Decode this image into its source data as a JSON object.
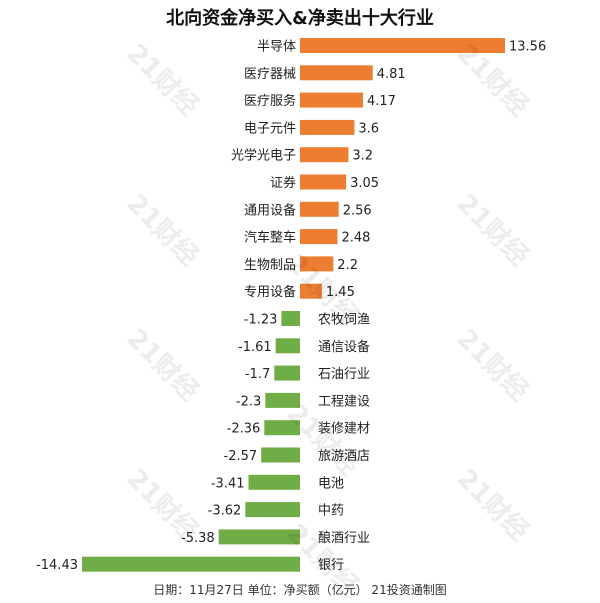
{
  "chart_data": {
    "type": "bar",
    "orientation": "horizontal",
    "title": "北向资金净买入&净卖出十大行业",
    "categories": [
      "半导体",
      "医疗器械",
      "医疗服务",
      "电子元件",
      "光学光电子",
      "证券",
      "通用设备",
      "汽车整车",
      "生物制品",
      "专用设备",
      "农牧饲渔",
      "通信设备",
      "石油行业",
      "工程建设",
      "装修建材",
      "旅游酒店",
      "电池",
      "中药",
      "酿酒行业",
      "银行"
    ],
    "values": [
      13.56,
      4.81,
      4.17,
      3.6,
      3.2,
      3.05,
      2.56,
      2.48,
      2.2,
      1.45,
      -1.23,
      -1.61,
      -1.7,
      -2.3,
      -2.36,
      -2.57,
      -3.41,
      -3.62,
      -5.38,
      -14.43
    ],
    "value_labels": [
      "13.56",
      "4.81",
      "4.17",
      "3.6",
      "3.2",
      "3.05",
      "2.56",
      "2.48",
      "2.2",
      "1.45",
      "-1.23",
      "-1.61",
      "-1.7",
      "-2.3",
      "-2.36",
      "-2.57",
      "-3.41",
      "-3.62",
      "-5.38",
      "-14.43"
    ],
    "xlim": [
      -14.43,
      13.56
    ],
    "grid": false,
    "legend": "none",
    "colors": {
      "positive": "#ED7D31",
      "negative": "#70AD47"
    }
  },
  "footer": "日期：11月27日 单位：净买额（亿元） 21投资通制图",
  "watermark": "21财经"
}
